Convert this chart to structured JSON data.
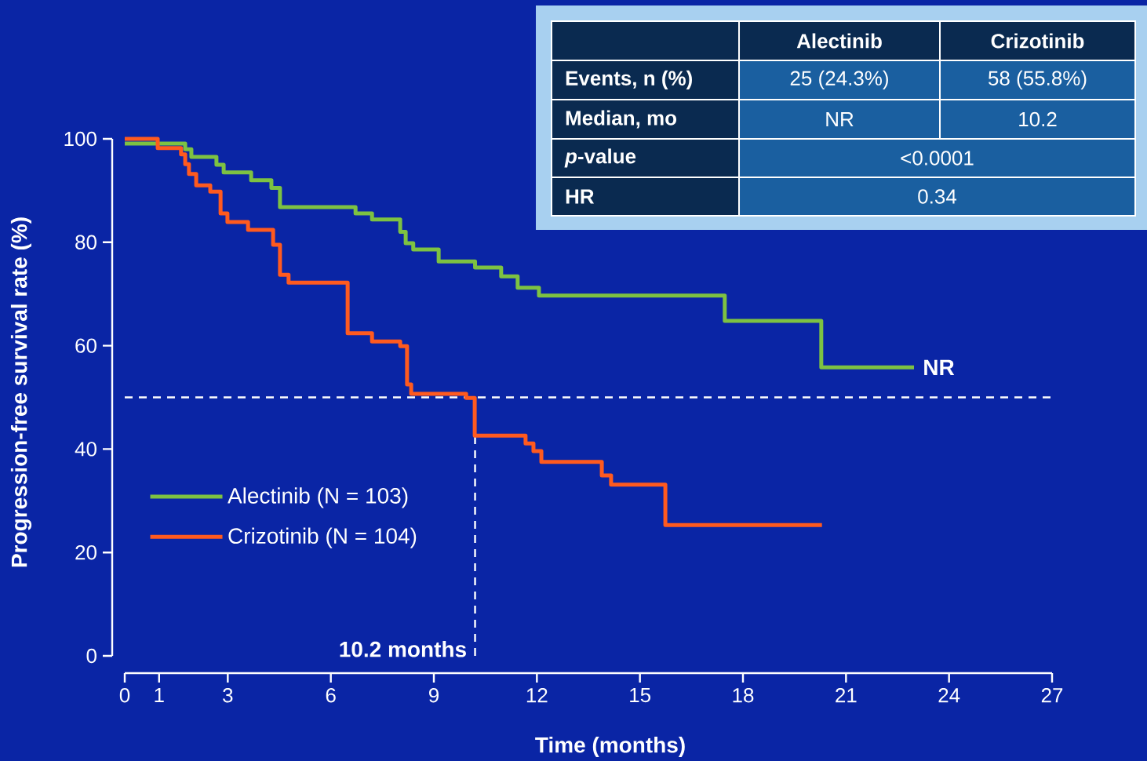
{
  "chart_data": {
    "type": "step",
    "xlabel": "Time (months)",
    "ylabel": "Progression-free survival rate (%)",
    "xlim": [
      0,
      27
    ],
    "xticks": [
      0,
      1,
      3,
      6,
      9,
      12,
      15,
      18,
      21,
      24,
      27
    ],
    "ylim": [
      0,
      100
    ],
    "yticks": [
      0,
      20,
      40,
      60,
      80,
      100
    ],
    "legend": "bottom left",
    "series": [
      {
        "name": "Alectinib (N = 103)",
        "color": "#7dc242",
        "x": [
          0,
          1.76,
          1.94,
          2.67,
          2.88,
          3.68,
          4.27,
          4.52,
          6.72,
          7.2,
          8.02,
          8.18,
          8.4,
          9.14,
          10.2,
          10.96,
          11.44,
          12.06,
          17.47,
          20.28,
          22.98
        ],
        "values": [
          99.1,
          98,
          96.5,
          95,
          93.5,
          92,
          90.5,
          86.8,
          85.6,
          84.4,
          82,
          79.8,
          78.6,
          76.3,
          75.1,
          73.4,
          71.2,
          69.7,
          64.8,
          55.8,
          55.8
        ]
      },
      {
        "name": "Crizotinib (N = 104)",
        "color": "#ff5a1f",
        "x": [
          0,
          0.96,
          1.64,
          1.76,
          1.87,
          2.08,
          2.49,
          2.79,
          2.99,
          3.59,
          4.32,
          4.52,
          4.77,
          6.49,
          7.2,
          8.02,
          8.22,
          8.34,
          9.94,
          10.19,
          11.67,
          11.9,
          12.13,
          13.89,
          14.16,
          15.74,
          20.3
        ],
        "values": [
          100,
          98.2,
          97,
          95.1,
          93.2,
          91,
          89.8,
          85.6,
          83.9,
          82.4,
          79.5,
          73.7,
          72.2,
          62.4,
          60.8,
          59.9,
          52.5,
          50.7,
          49.9,
          42.6,
          41.1,
          39.6,
          37.5,
          34.9,
          33.1,
          25.3,
          25.3
        ]
      }
    ],
    "ref_lines": [
      {
        "axis": "y",
        "value": 50,
        "line_style": "dashed",
        "color": "#ffffff"
      },
      {
        "axis": "x",
        "value": 10.2,
        "line_style": "dashed",
        "color": "#ffffff"
      }
    ],
    "annotations": [
      {
        "text": "NR",
        "x": 23,
        "y": 55.8
      },
      {
        "text": "10.2 months",
        "x": 10.2,
        "y": 0
      },
      "Alectinib",
      "Crizotinib",
      "Events, n (%)",
      "25 (24.3%)",
      "58 (55.8%)",
      "Median, mo",
      "NR",
      "10.2",
      "*p*-value",
      "<0.0001",
      "HR",
      "0.34"
    ]
  }
}
